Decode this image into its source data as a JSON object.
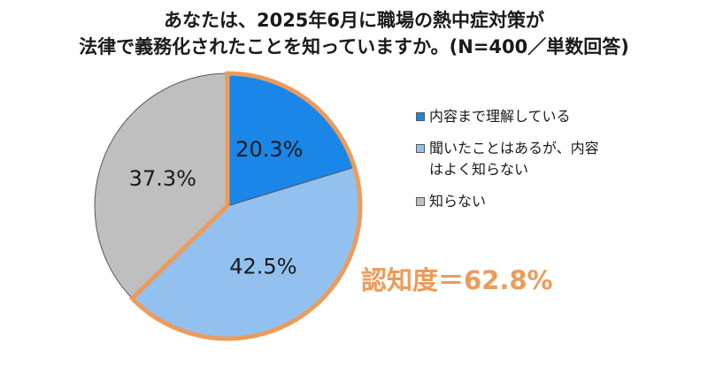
{
  "title_line1": "あなたは、2025年6月に職場の熱中症対策が",
  "title_line2": "法律で義務化されたことを知っていますか。(N=400／単数回答)",
  "awareness_label": "認知度＝62.8%",
  "colors": {
    "highlight_border": "#ED9B5A",
    "slice_border": "#505A66"
  },
  "chart_data": {
    "type": "pie",
    "title": "あなたは、2025年6月に職場の熱中症対策が法律で義務化されたことを知っていますか。(N=400／単数回答)",
    "start": "12 o'clock",
    "direction": "clockwise",
    "slices": [
      {
        "label": "内容まで理解している",
        "value": 20.3,
        "value_label": "20.3%",
        "color": "#1A86E8",
        "highlighted": true
      },
      {
        "label": "聞いたことはあるが、内容はよく知らない",
        "value": 42.5,
        "value_label": "42.5%",
        "color": "#92C1F0",
        "highlighted": true
      },
      {
        "label": "知らない",
        "value": 37.3,
        "value_label": "37.3%",
        "color": "#BFBFBF",
        "highlighted": false
      }
    ],
    "annotations": [
      "認知度＝62.8%"
    ],
    "legend": {
      "position": "right",
      "entries": [
        "内容まで理解している",
        "聞いたことはあるが、内容はよく知らない",
        "知らない"
      ]
    }
  }
}
